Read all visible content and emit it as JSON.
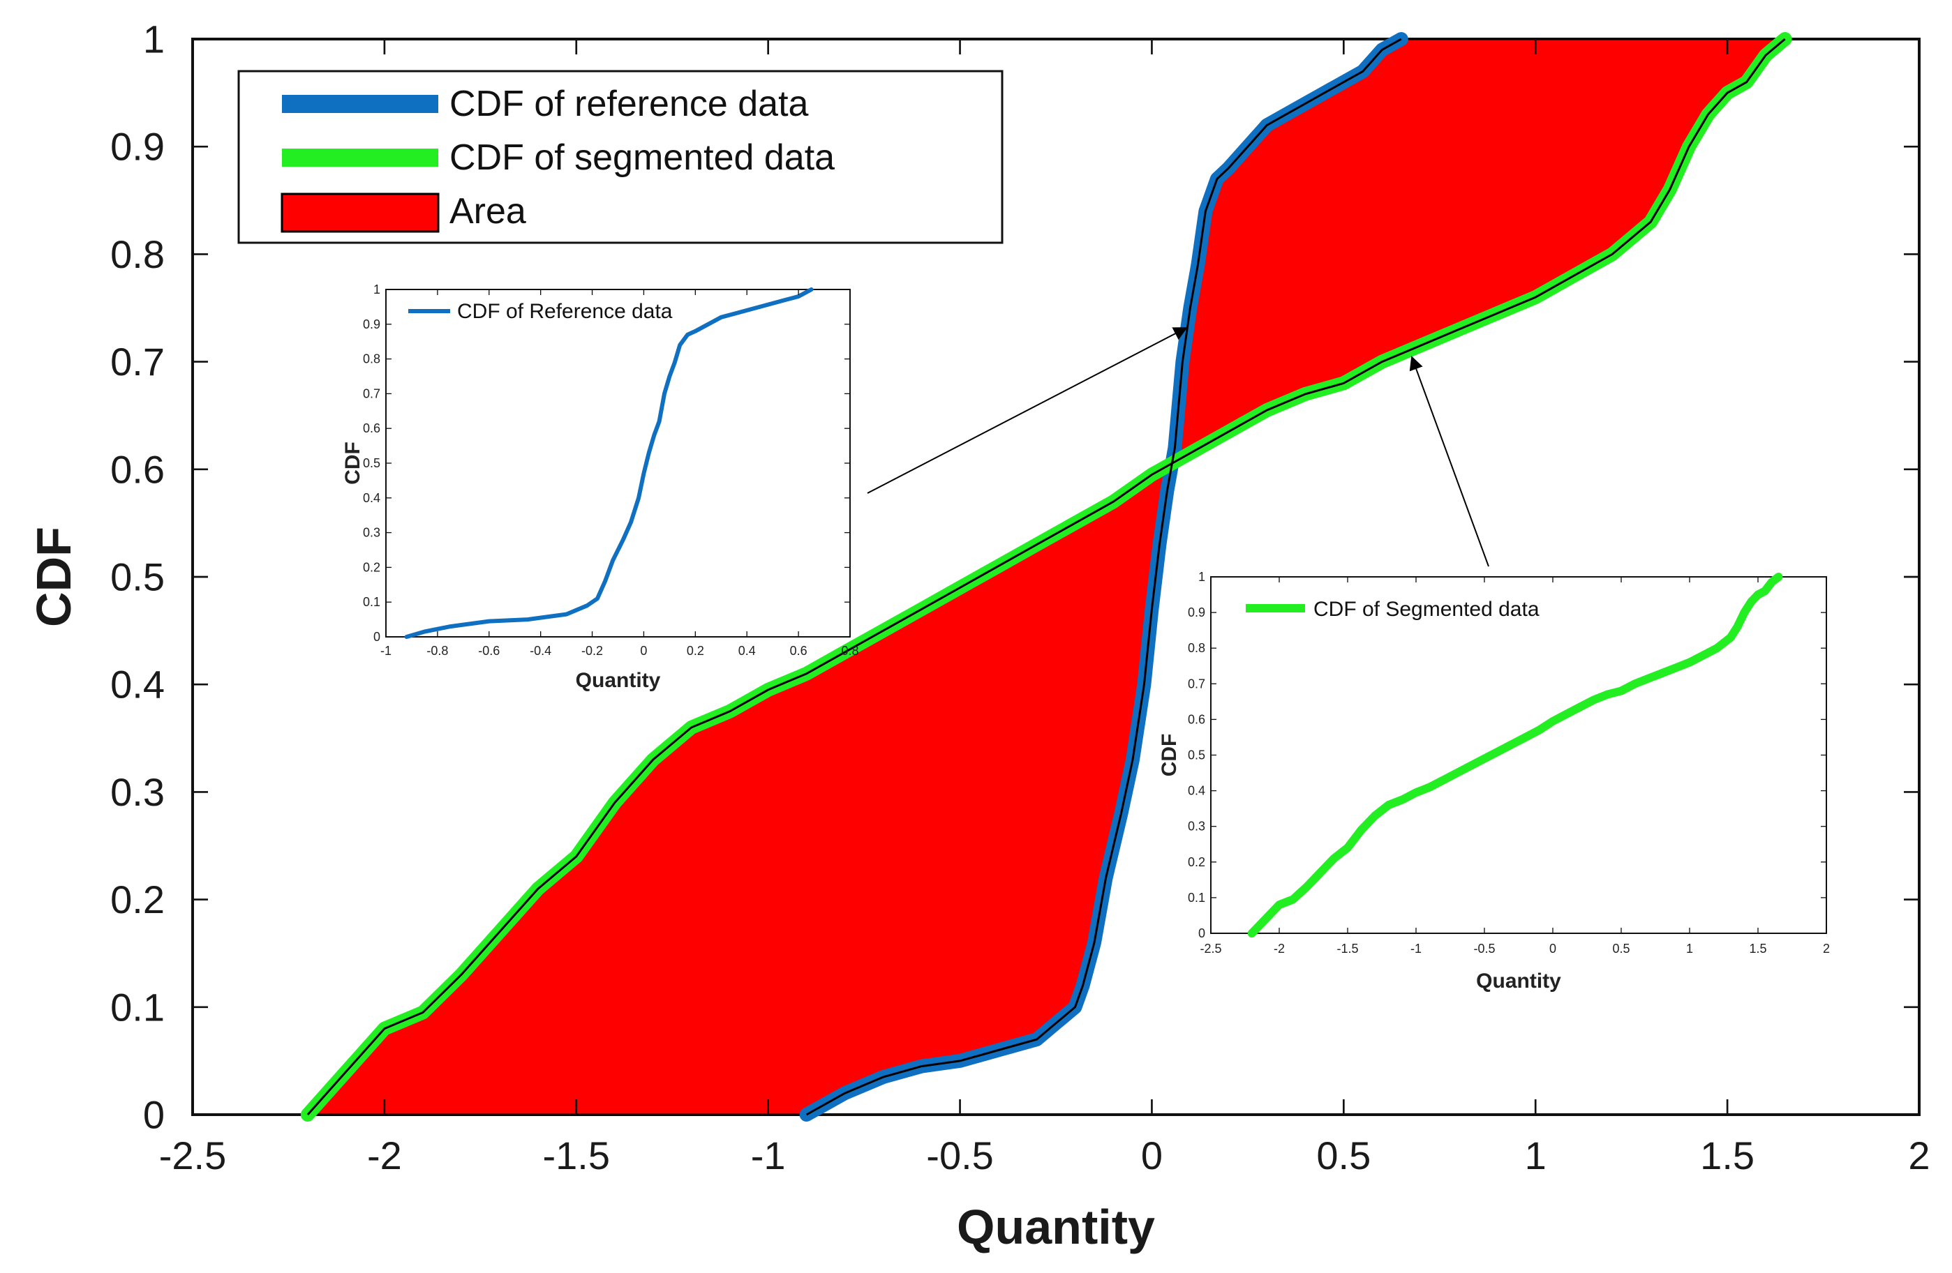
{
  "chart_data": [
    {
      "type": "line",
      "title": "",
      "xlabel": "Quantity",
      "ylabel": "CDF",
      "xlim": [
        -2.5,
        2
      ],
      "ylim": [
        0,
        1
      ],
      "xticks": [
        "-2.5",
        "-2",
        "-1.5",
        "-1",
        "-0.5",
        "0",
        "0.5",
        "1",
        "1.5",
        "2"
      ],
      "yticks": [
        "0",
        "0.1",
        "0.2",
        "0.3",
        "0.4",
        "0.5",
        "0.6",
        "0.7",
        "0.8",
        "0.9",
        "1"
      ],
      "legend_position": "top-left",
      "legend": [
        "CDF of reference data",
        "CDF of segmented data",
        "Area"
      ],
      "colors": {
        "reference": "#0f6fc0",
        "segmented": "#22ee22",
        "area": "#ff0000"
      },
      "series": [
        {
          "name": "CDF of reference data",
          "x": [
            -0.9,
            -0.8,
            -0.7,
            -0.6,
            -0.5,
            -0.4,
            -0.3,
            -0.25,
            -0.2,
            -0.18,
            -0.15,
            -0.12,
            -0.08,
            -0.05,
            -0.02,
            0.0,
            0.02,
            0.04,
            0.06,
            0.07,
            0.08,
            0.1,
            0.12,
            0.14,
            0.17,
            0.2,
            0.25,
            0.3,
            0.35,
            0.4,
            0.45,
            0.5,
            0.55,
            0.6,
            0.65
          ],
          "y": [
            0.0,
            0.02,
            0.035,
            0.045,
            0.05,
            0.06,
            0.07,
            0.085,
            0.1,
            0.12,
            0.16,
            0.22,
            0.28,
            0.33,
            0.4,
            0.47,
            0.53,
            0.58,
            0.62,
            0.66,
            0.7,
            0.75,
            0.79,
            0.84,
            0.87,
            0.88,
            0.9,
            0.92,
            0.93,
            0.94,
            0.95,
            0.96,
            0.97,
            0.99,
            1.0
          ]
        },
        {
          "name": "CDF of segmented data",
          "x": [
            -2.2,
            -2.1,
            -2.0,
            -1.9,
            -1.8,
            -1.7,
            -1.6,
            -1.5,
            -1.4,
            -1.3,
            -1.2,
            -1.1,
            -1.0,
            -0.9,
            -0.8,
            -0.7,
            -0.6,
            -0.5,
            -0.4,
            -0.3,
            -0.2,
            -0.1,
            0.0,
            0.1,
            0.2,
            0.3,
            0.4,
            0.5,
            0.6,
            0.7,
            0.8,
            0.9,
            1.0,
            1.1,
            1.2,
            1.3,
            1.35,
            1.4,
            1.45,
            1.5,
            1.55,
            1.6,
            1.65
          ],
          "y": [
            0.0,
            0.04,
            0.08,
            0.095,
            0.13,
            0.17,
            0.21,
            0.24,
            0.29,
            0.33,
            0.36,
            0.375,
            0.395,
            0.41,
            0.43,
            0.45,
            0.47,
            0.49,
            0.51,
            0.53,
            0.55,
            0.57,
            0.595,
            0.615,
            0.635,
            0.655,
            0.67,
            0.68,
            0.7,
            0.715,
            0.73,
            0.745,
            0.76,
            0.78,
            0.8,
            0.83,
            0.86,
            0.9,
            0.93,
            0.95,
            0.96,
            0.985,
            1.0
          ]
        }
      ],
      "annotation_note": "Area shaded between CDF of reference data and CDF of segmented data"
    },
    {
      "type": "line",
      "title": "",
      "xlabel": "Quantity",
      "ylabel": "CDF",
      "xlim": [
        -1,
        0.8
      ],
      "ylim": [
        0,
        1
      ],
      "xticks": [
        "-1",
        "-0.8",
        "-0.6",
        "-0.4",
        "-0.2",
        "0",
        "0.2",
        "0.4",
        "0.6",
        "0.8"
      ],
      "yticks": [
        "0",
        "0.1",
        "0.2",
        "0.3",
        "0.4",
        "0.5",
        "0.6",
        "0.7",
        "0.8",
        "0.9",
        "1"
      ],
      "legend_position": "top-left",
      "legend": [
        "CDF of Reference data"
      ],
      "series": [
        {
          "name": "CDF of Reference data",
          "x": [
            -0.92,
            -0.85,
            -0.75,
            -0.6,
            -0.45,
            -0.3,
            -0.22,
            -0.18,
            -0.15,
            -0.12,
            -0.08,
            -0.05,
            -0.02,
            0.0,
            0.02,
            0.04,
            0.06,
            0.07,
            0.08,
            0.1,
            0.12,
            0.14,
            0.17,
            0.2,
            0.25,
            0.3,
            0.35,
            0.4,
            0.45,
            0.5,
            0.55,
            0.6,
            0.65
          ],
          "y": [
            0.0,
            0.015,
            0.03,
            0.045,
            0.05,
            0.065,
            0.09,
            0.11,
            0.16,
            0.22,
            0.28,
            0.33,
            0.4,
            0.47,
            0.53,
            0.58,
            0.62,
            0.66,
            0.7,
            0.75,
            0.79,
            0.84,
            0.87,
            0.88,
            0.9,
            0.92,
            0.93,
            0.94,
            0.95,
            0.96,
            0.97,
            0.98,
            1.0
          ]
        }
      ]
    },
    {
      "type": "line",
      "title": "",
      "xlabel": "Quantity",
      "ylabel": "CDF",
      "xlim": [
        -2.5,
        2
      ],
      "ylim": [
        0,
        1
      ],
      "xticks": [
        "-2.5",
        "-2",
        "-1.5",
        "-1",
        "-0.5",
        "0",
        "0.5",
        "1",
        "1.5",
        "2"
      ],
      "yticks": [
        "0",
        "0.1",
        "0.2",
        "0.3",
        "0.4",
        "0.5",
        "0.6",
        "0.7",
        "0.8",
        "0.9",
        "1"
      ],
      "legend_position": "top-left",
      "legend": [
        "CDF of Segmented data"
      ],
      "series": [
        {
          "name": "CDF of Segmented data",
          "x": [
            -2.2,
            -2.1,
            -2.0,
            -1.9,
            -1.8,
            -1.7,
            -1.6,
            -1.5,
            -1.4,
            -1.3,
            -1.2,
            -1.1,
            -1.0,
            -0.9,
            -0.8,
            -0.7,
            -0.6,
            -0.5,
            -0.4,
            -0.3,
            -0.2,
            -0.1,
            0.0,
            0.1,
            0.2,
            0.3,
            0.4,
            0.5,
            0.6,
            0.7,
            0.8,
            0.9,
            1.0,
            1.1,
            1.2,
            1.3,
            1.35,
            1.4,
            1.45,
            1.5,
            1.55,
            1.6,
            1.65
          ],
          "y": [
            0.0,
            0.04,
            0.08,
            0.095,
            0.13,
            0.17,
            0.21,
            0.24,
            0.29,
            0.33,
            0.36,
            0.375,
            0.395,
            0.41,
            0.43,
            0.45,
            0.47,
            0.49,
            0.51,
            0.53,
            0.55,
            0.57,
            0.595,
            0.615,
            0.635,
            0.655,
            0.67,
            0.68,
            0.7,
            0.715,
            0.73,
            0.745,
            0.76,
            0.78,
            0.8,
            0.83,
            0.86,
            0.9,
            0.93,
            0.95,
            0.96,
            0.985,
            1.0
          ]
        }
      ]
    }
  ]
}
